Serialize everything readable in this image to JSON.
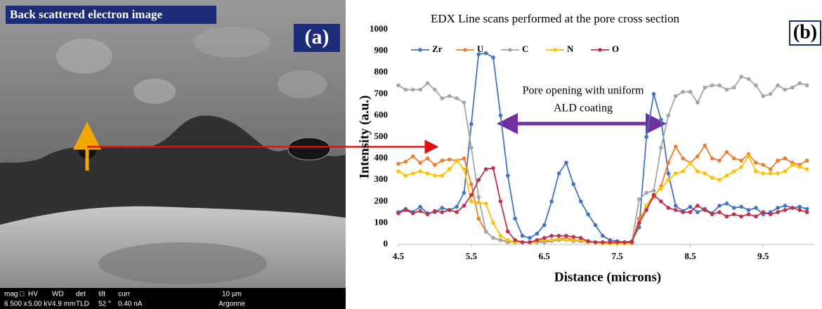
{
  "image_panel": {
    "caption": "Back scattered electron image",
    "panel_label": "(a)",
    "info_headers": [
      "mag □",
      "HV",
      "WD",
      "det",
      "tilt",
      "curr"
    ],
    "info_values": [
      "6 500 x",
      "5.00 kV",
      "4.9 mm",
      "TLD",
      "52 °",
      "0.40 nA"
    ],
    "scale_bar": "10 µm",
    "lab": "Argonne"
  },
  "chart_data": {
    "type": "line",
    "title": "EDX Line scans performed at the pore cross section",
    "panel_label": "(b)",
    "x_label": "Distance (microns)",
    "y_label": "Intensity (a.u.)",
    "annotation": [
      "Pore opening with uniform",
      "ALD coating"
    ],
    "x": [
      4.5,
      4.6,
      4.7,
      4.8,
      4.9,
      5.0,
      5.1,
      5.2,
      5.3,
      5.4,
      5.5,
      5.6,
      5.7,
      5.8,
      5.9,
      6.0,
      6.1,
      6.2,
      6.3,
      6.4,
      6.5,
      6.6,
      6.7,
      6.8,
      6.9,
      7.0,
      7.1,
      7.2,
      7.3,
      7.4,
      7.5,
      7.6,
      7.7,
      7.8,
      7.9,
      8.0,
      8.1,
      8.2,
      8.3,
      8.4,
      8.5,
      8.6,
      8.7,
      8.8,
      8.9,
      9.0,
      9.1,
      9.2,
      9.3,
      9.4,
      9.5,
      9.6,
      9.7,
      9.8,
      9.9,
      10.0,
      10.1
    ],
    "series": [
      {
        "name": "Zr",
        "color": "#4472c4",
        "values": [
          150,
          165,
          150,
          175,
          145,
          150,
          170,
          160,
          175,
          240,
          560,
          885,
          890,
          870,
          600,
          320,
          120,
          40,
          30,
          50,
          90,
          200,
          330,
          380,
          280,
          200,
          140,
          90,
          40,
          20,
          15,
          10,
          15,
          80,
          500,
          700,
          580,
          330,
          180,
          155,
          175,
          150,
          165,
          145,
          180,
          190,
          170,
          175,
          160,
          170,
          140,
          150,
          170,
          180,
          170,
          175,
          165
        ]
      },
      {
        "name": "U",
        "color": "#ed7d31",
        "values": [
          375,
          385,
          410,
          380,
          400,
          370,
          390,
          395,
          390,
          400,
          280,
          120,
          60,
          30,
          20,
          15,
          10,
          10,
          10,
          10,
          15,
          20,
          25,
          30,
          20,
          20,
          15,
          10,
          10,
          10,
          5,
          5,
          10,
          120,
          170,
          220,
          270,
          380,
          455,
          400,
          380,
          410,
          460,
          400,
          390,
          430,
          400,
          390,
          420,
          380,
          370,
          350,
          390,
          400,
          380,
          370,
          390
        ]
      },
      {
        "name": "C",
        "color": "#a5a5a5",
        "values": [
          740,
          720,
          720,
          720,
          750,
          720,
          680,
          690,
          680,
          660,
          450,
          220,
          60,
          30,
          20,
          10,
          10,
          10,
          10,
          10,
          10,
          15,
          20,
          20,
          15,
          15,
          10,
          10,
          10,
          10,
          5,
          5,
          10,
          210,
          240,
          250,
          450,
          600,
          690,
          710,
          710,
          660,
          730,
          740,
          740,
          720,
          730,
          780,
          770,
          740,
          690,
          700,
          740,
          720,
          730,
          750,
          740
        ]
      },
      {
        "name": "N",
        "color": "#ffc000",
        "values": [
          340,
          320,
          330,
          340,
          330,
          320,
          320,
          350,
          390,
          350,
          200,
          195,
          190,
          100,
          40,
          20,
          10,
          10,
          10,
          15,
          20,
          20,
          25,
          20,
          20,
          20,
          10,
          10,
          5,
          5,
          5,
          5,
          5,
          100,
          180,
          230,
          260,
          300,
          330,
          340,
          380,
          340,
          330,
          310,
          300,
          320,
          340,
          360,
          410,
          340,
          330,
          330,
          330,
          340,
          370,
          360,
          350
        ]
      },
      {
        "name": "O",
        "color": "#c0304a",
        "values": [
          145,
          160,
          145,
          155,
          140,
          155,
          150,
          160,
          150,
          180,
          230,
          300,
          350,
          355,
          200,
          60,
          20,
          10,
          10,
          20,
          30,
          40,
          40,
          40,
          35,
          30,
          15,
          10,
          10,
          10,
          10,
          10,
          10,
          100,
          160,
          230,
          200,
          170,
          160,
          150,
          150,
          180,
          160,
          140,
          150,
          130,
          140,
          130,
          140,
          130,
          150,
          140,
          150,
          160,
          170,
          160,
          150
        ]
      }
    ],
    "xlim": [
      4.5,
      10.2
    ],
    "xticks": [
      4.5,
      5.5,
      6.5,
      7.5,
      8.5,
      9.5
    ],
    "ylim": [
      0,
      1000
    ],
    "yticks": [
      0,
      100,
      200,
      300,
      400,
      500,
      600,
      700,
      800,
      900,
      1000
    ],
    "grid": false,
    "legend": "top-left"
  }
}
